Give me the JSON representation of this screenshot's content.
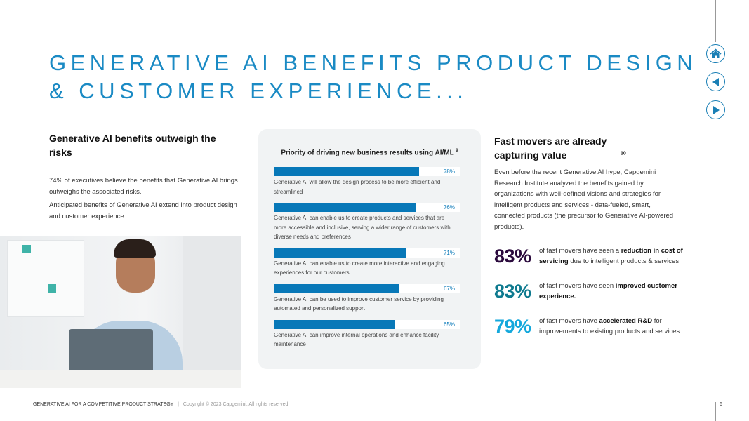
{
  "title_line1": "GENERATIVE AI BENEFITS PRODUCT DESIGN",
  "title_line2": "& CUSTOMER EXPERIENCE...",
  "nav": {
    "home": "home-icon",
    "prev": "triangle-left-icon",
    "next": "triangle-right-icon",
    "color": "#1a7fb5"
  },
  "left": {
    "heading": "Generative AI benefits outweigh the risks",
    "p1": "74% of executives believe the benefits that Generative AI brings outweighs the associated risks.",
    "p2": "Anticipated benefits of Generative AI extend into product design and customer experience."
  },
  "chart_data": {
    "type": "bar",
    "orientation": "horizontal",
    "title": "Priority of driving new business results using AI/ML",
    "title_ref": "9",
    "xlim": [
      0,
      100
    ],
    "grid": false,
    "bar_color": "#0878b8",
    "categories": [
      "Generative AI will allow the design process to be more efficient and streamlined",
      "Generative AI can enable us to create products and services that are more accessible and inclusive, serving a wider range of customers with diverse needs and preferences",
      "Generative AI can enable us to create more interactive and engaging experiences for our customers",
      "Generative AI can be used to improve customer service by providing automated and personalized support",
      "Generative AI can improve internal operations and enhance facility maintenance"
    ],
    "values": [
      78,
      76,
      71,
      67,
      65
    ],
    "labels": [
      "78%",
      "76%",
      "71%",
      "67%",
      "65%"
    ]
  },
  "right": {
    "heading": "Fast movers are already capturing value",
    "heading_ref": "10",
    "p": "Even before the recent Generative AI hype, Capgemini Research Institute analyzed the benefits gained by organizations with well-defined visions and strategies for intelligent products and services - data-fueled, smart, connected products (the precursor to Generative AI-powered products).",
    "stats": [
      {
        "value": "83%",
        "color": "#2b0a3d",
        "pre": "of fast movers have seen a ",
        "bold": "reduction in cost of servicing",
        "post": " due to intelligent products & services."
      },
      {
        "value": "83%",
        "color": "#0e7a8f",
        "pre": "of fast movers have seen ",
        "bold": "improved customer experience.",
        "post": ""
      },
      {
        "value": "79%",
        "color": "#14a8dc",
        "pre": "of fast movers have ",
        "bold": "accelerated R&D",
        "post": " for improvements to existing products and services."
      }
    ]
  },
  "footer": {
    "doc": "GENERATIVE AI FOR A COMPETITIVE PRODUCT STRATEGY",
    "sep": "|",
    "copyright": "Copyright © 2023 Capgemini.  All rights reserved.",
    "page": "6"
  }
}
